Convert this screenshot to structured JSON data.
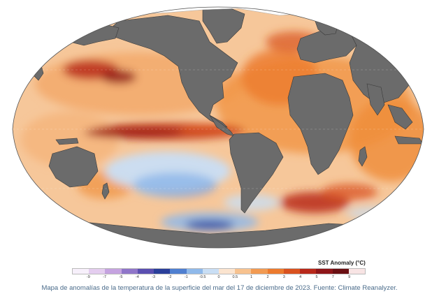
{
  "legend": {
    "title": "SST Anomaly (°C)",
    "ticks": [
      "-9",
      "-7",
      "-5",
      "-4",
      "-3",
      "-2",
      "-1",
      "-0.5",
      "0",
      "0.5",
      "1",
      "2",
      "3",
      "4",
      "5",
      "7",
      "9"
    ],
    "colors": [
      "#f7f0fb",
      "#e4cdef",
      "#c5a3e0",
      "#8f75c9",
      "#5a4fb0",
      "#2a3f9a",
      "#4f7fd0",
      "#8fb9ea",
      "#c9def4",
      "#fbe4cf",
      "#f7c28f",
      "#f29a52",
      "#ec7a2e",
      "#d9521f",
      "#b8281a",
      "#8e1518",
      "#6a0f12",
      "#f8e4e4"
    ]
  },
  "caption": "Mapa de anomalías de la temperatura de la superficie del mar del 17 de diciembre de 2023. Fuente: Climate Reanalyzer.",
  "colors": {
    "land": "#6b6b6b",
    "ice": "#ffffff",
    "ocean_base": "#f6c79a",
    "warm": "#f08a3c",
    "hot": "#c2361b",
    "very_hot": "#8e1518",
    "cool": "#c9def4",
    "cold": "#7aa5df",
    "very_cold": "#2a3f9a"
  }
}
